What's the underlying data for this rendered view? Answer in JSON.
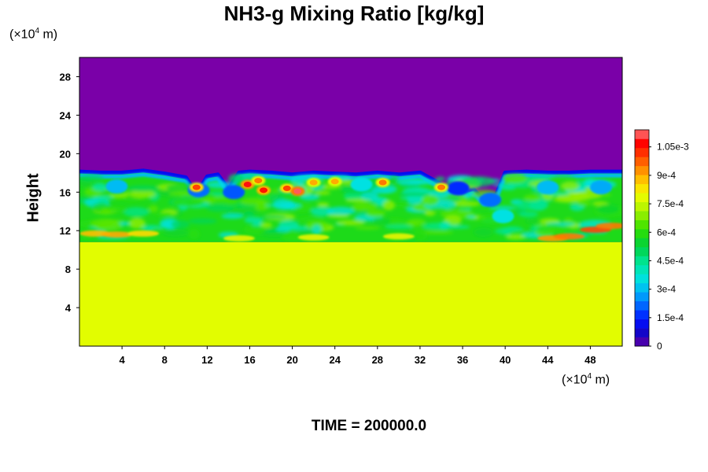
{
  "chart_data": {
    "type": "heatmap",
    "title": "NH3-g Mixing Ratio [kg/kg]",
    "ylabel": "Height",
    "y_unit": "(×10",
    "y_unit_exp": "4",
    "y_unit_tail": " m)",
    "x_unit": "(×10",
    "x_unit_exp": "4",
    "x_unit_tail": " m)",
    "xlim": [
      0,
      51
    ],
    "ylim": [
      0,
      30
    ],
    "x_ticks": [
      4,
      8,
      12,
      16,
      20,
      24,
      28,
      32,
      36,
      40,
      44,
      48
    ],
    "y_ticks": [
      4,
      8,
      12,
      16,
      20,
      24,
      28
    ],
    "colorbar": {
      "min": 0,
      "max": 0.00114,
      "labels": [
        {
          "value": 0,
          "text": "0"
        },
        {
          "value": 0.00015,
          "text": "1.5e-4"
        },
        {
          "value": 0.0003,
          "text": "3e-4"
        },
        {
          "value": 0.00045,
          "text": "4.5e-4"
        },
        {
          "value": 0.0006,
          "text": "6e-4"
        },
        {
          "value": 0.00075,
          "text": "7.5e-4"
        },
        {
          "value": 0.0009,
          "text": "9e-4"
        },
        {
          "value": 0.00105,
          "text": "1.05e-3"
        }
      ]
    },
    "field": {
      "lower_layer_top": 10.8,
      "lower_layer_value": 0.00078,
      "upper_layer_value": 0,
      "cloud_top_profile": {
        "x": [
          0,
          2,
          4,
          6,
          8,
          10,
          11,
          12,
          13,
          14,
          15,
          16,
          18,
          20,
          22,
          24,
          26,
          28,
          30,
          32,
          34,
          35,
          36,
          37,
          38,
          39,
          40,
          42,
          44,
          46,
          48,
          51
        ],
        "y": [
          18.3,
          18.2,
          18.2,
          18.4,
          18.1,
          17.7,
          16.0,
          17.8,
          18.0,
          16.5,
          18.2,
          18.3,
          18.2,
          18.0,
          18.2,
          18.1,
          18.0,
          18.2,
          18.0,
          18.2,
          17.0,
          16.3,
          16.1,
          16.5,
          15.3,
          15.5,
          18.2,
          18.3,
          18.2,
          18.2,
          18.3,
          18.3
        ]
      }
    }
  },
  "time_label": "TIME = 200000.0"
}
